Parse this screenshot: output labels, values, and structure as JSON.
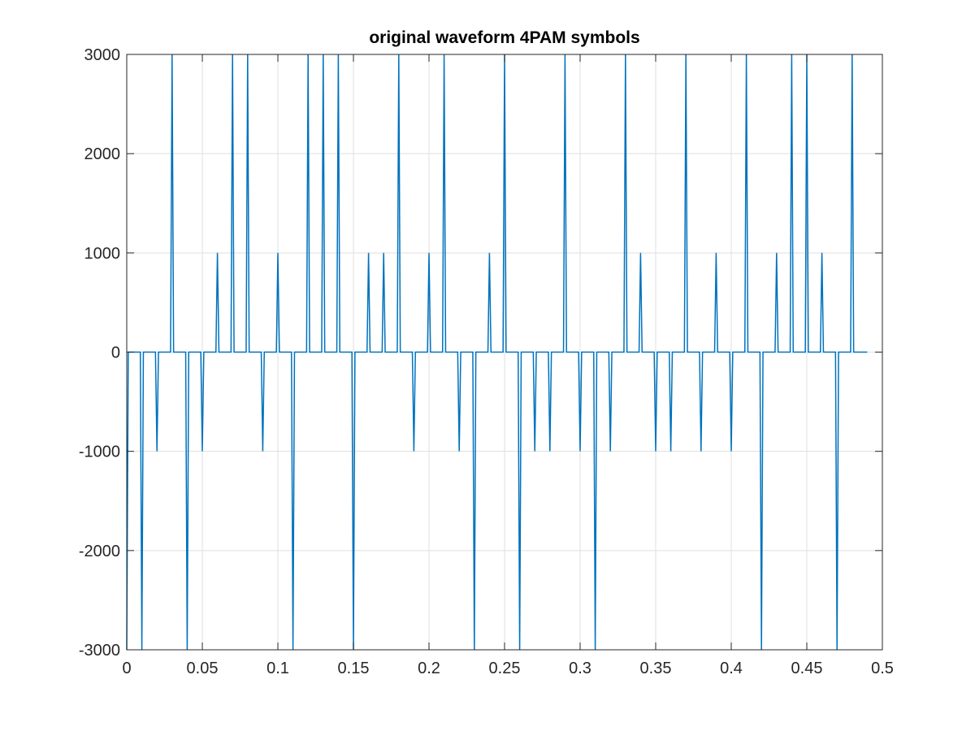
{
  "chart_data": {
    "type": "line",
    "title": "original waveform 4PAM symbols",
    "xlabel": "",
    "ylabel": "",
    "xlim": [
      0,
      0.5
    ],
    "ylim": [
      -3000,
      3000
    ],
    "xticks": [
      0,
      0.05,
      0.1,
      0.15,
      0.2,
      0.25,
      0.3,
      0.35,
      0.4,
      0.45,
      0.5
    ],
    "xtick_labels": [
      "0",
      "0.05",
      "0.1",
      "0.15",
      "0.2",
      "0.25",
      "0.3",
      "0.35",
      "0.4",
      "0.45",
      "0.5"
    ],
    "yticks": [
      -3000,
      -2000,
      -1000,
      0,
      1000,
      2000,
      3000
    ],
    "ytick_labels": [
      "-3000",
      "-2000",
      "-1000",
      "0",
      "1000",
      "2000",
      "3000"
    ],
    "grid": true,
    "sample_step": 0.001,
    "symbol_period": 0.01,
    "x_end": 0.49,
    "series": [
      {
        "name": "waveform",
        "color": "#0072BD",
        "symbol_values": [
          -3000,
          -3000,
          -1000,
          3000,
          -3000,
          -1000,
          1000,
          3000,
          3000,
          -1000,
          1000,
          -3000,
          3000,
          3000,
          3000,
          -3000,
          1000,
          1000,
          3000,
          -1000,
          1000,
          3000,
          -1000,
          -3000,
          1000,
          3000,
          -3000,
          -1000,
          -1000,
          3000,
          -1000,
          -3000,
          -1000,
          3000,
          1000,
          -1000,
          -1000,
          3000,
          -1000,
          1000,
          -1000,
          3000,
          -3000,
          1000,
          3000,
          3000,
          1000,
          -3000,
          3000
        ]
      }
    ]
  }
}
